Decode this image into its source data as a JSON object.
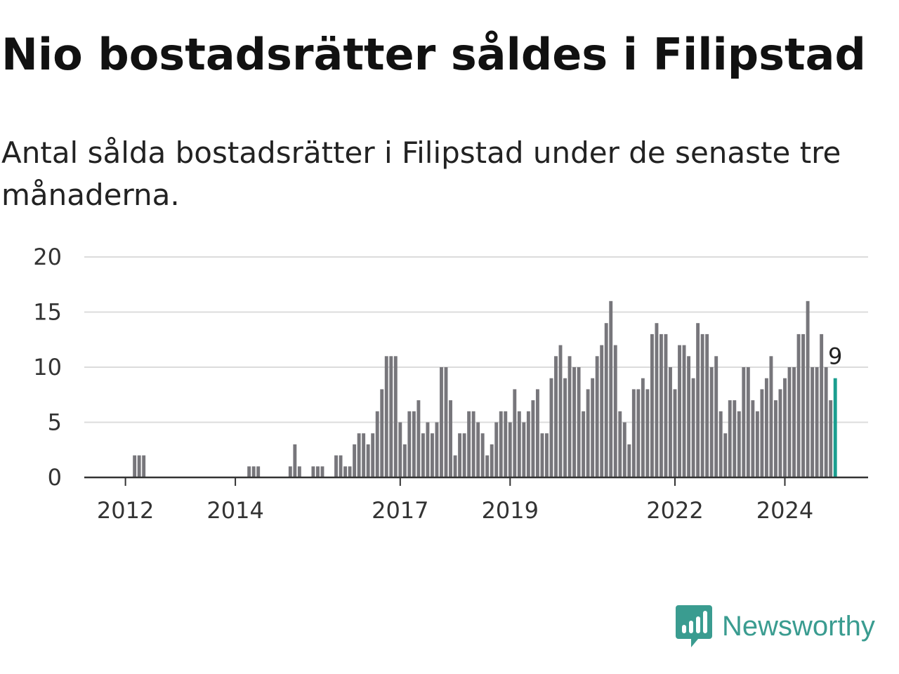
{
  "header": {
    "title": "Nio bostadsrätter såldes i Filipstad",
    "subtitle": "Antal sålda bostadsrätter i Filipstad under de senaste tre månaderna."
  },
  "brand": {
    "name": "Newsworthy",
    "color": "#3a9c90"
  },
  "colors": {
    "bar": "#77767b",
    "highlight": "#1a9e8f",
    "grid": "#dcdcdc",
    "axis": "#333333"
  },
  "chart_data": {
    "type": "bar",
    "title": "Nio bostadsrätter såldes i Filipstad",
    "subtitle": "Antal sålda bostadsrätter i Filipstad under de senaste tre månaderna.",
    "xlabel": "",
    "ylabel": "",
    "ylim": [
      0,
      20
    ],
    "yticks": [
      0,
      5,
      10,
      15,
      20
    ],
    "xticks": [
      "2012",
      "2014",
      "2017",
      "2019",
      "2022",
      "2024"
    ],
    "grid": true,
    "series_start": "2011-05",
    "frequency": "monthly",
    "values": [
      0,
      0,
      0,
      0,
      0,
      0,
      0,
      0,
      0,
      0,
      2,
      2,
      2,
      0,
      0,
      0,
      0,
      0,
      0,
      0,
      0,
      0,
      0,
      0,
      0,
      0,
      0,
      0,
      0,
      0,
      0,
      0,
      0,
      0,
      0,
      1,
      1,
      1,
      0,
      0,
      0,
      0,
      0,
      0,
      1,
      3,
      1,
      0,
      0,
      1,
      1,
      1,
      0,
      0,
      2,
      2,
      1,
      1,
      3,
      4,
      4,
      3,
      4,
      6,
      8,
      11,
      11,
      11,
      5,
      3,
      6,
      6,
      7,
      4,
      5,
      4,
      5,
      10,
      10,
      7,
      2,
      4,
      4,
      6,
      6,
      5,
      4,
      2,
      3,
      5,
      6,
      6,
      5,
      8,
      6,
      5,
      6,
      7,
      8,
      4,
      4,
      9,
      11,
      12,
      9,
      11,
      10,
      10,
      6,
      8,
      9,
      11,
      12,
      14,
      16,
      12,
      6,
      5,
      3,
      8,
      8,
      9,
      8,
      13,
      14,
      13,
      13,
      10,
      8,
      12,
      12,
      11,
      9,
      14,
      13,
      13,
      10,
      11,
      6,
      4,
      7,
      7,
      6,
      10,
      10,
      7,
      6,
      8,
      9,
      11,
      7,
      8,
      9,
      10,
      10,
      13,
      13,
      16,
      10,
      10,
      13,
      10,
      7,
      9
    ],
    "highlight_last": true,
    "last_value_label": "9"
  }
}
